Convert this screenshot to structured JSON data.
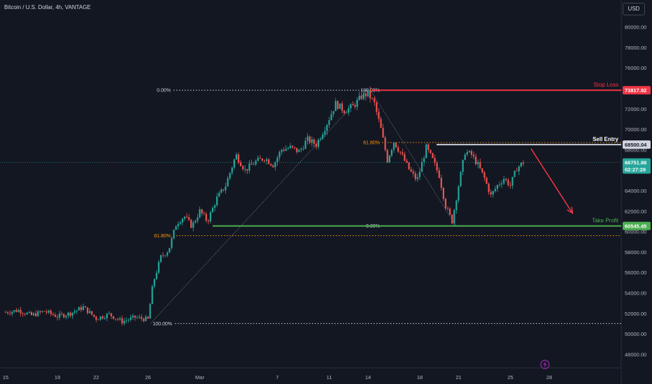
{
  "header": {
    "title": "Bitcoin / U.S. Dollar, 4h, VANTAGE",
    "currency_button": "USD"
  },
  "colors": {
    "background": "#131722",
    "up": "#26a69a",
    "down": "#ef5350",
    "stop": "#f23645",
    "take": "#4caf50",
    "fib": "#ff9800",
    "dotted": "#d1d4dc"
  },
  "icons": [
    "lightning-icon"
  ],
  "chart_data": {
    "type": "candlestick",
    "symbol": "Bitcoin / U.S. Dollar",
    "interval": "4h",
    "ylim": [
      47000,
      81000
    ],
    "y_ticks": [
      48000,
      50000,
      52000,
      54000,
      56000,
      58000,
      60000,
      62000,
      64000,
      66000,
      68000,
      70000,
      72000,
      74000,
      76000,
      78000,
      80000
    ],
    "x_labels": [
      {
        "label": "15",
        "day": 0
      },
      {
        "label": "19",
        "day": 4
      },
      {
        "label": "22",
        "day": 7
      },
      {
        "label": "26",
        "day": 11
      },
      {
        "label": "Mar",
        "day": 15
      },
      {
        "label": "7",
        "day": 21
      },
      {
        "label": "11",
        "day": 25
      },
      {
        "label": "14",
        "day": 28
      },
      {
        "label": "18",
        "day": 32
      },
      {
        "label": "21",
        "day": 35
      },
      {
        "label": "25",
        "day": 39
      },
      {
        "label": "28",
        "day": 42
      }
    ],
    "xlim": [
      0,
      45.5
    ],
    "price_path": [
      [
        0,
        52100
      ],
      [
        1,
        52300
      ],
      [
        2,
        51800
      ],
      [
        3,
        52200
      ],
      [
        4,
        51700
      ],
      [
        5,
        52000
      ],
      [
        6,
        52600
      ],
      [
        7,
        51500
      ],
      [
        8,
        51900
      ],
      [
        9,
        51200
      ],
      [
        10,
        51600
      ],
      [
        11,
        51400
      ],
      [
        11.4,
        55000
      ],
      [
        12,
        57500
      ],
      [
        12.6,
        58200
      ],
      [
        13.2,
        60800
      ],
      [
        13.8,
        61500
      ],
      [
        14.4,
        60500
      ],
      [
        15,
        62000
      ],
      [
        15.6,
        61000
      ],
      [
        16.3,
        63200
      ],
      [
        17,
        64500
      ],
      [
        17.8,
        67500
      ],
      [
        18.5,
        66000
      ],
      [
        19.3,
        66800
      ],
      [
        20,
        67200
      ],
      [
        20.7,
        66500
      ],
      [
        21.3,
        68000
      ],
      [
        22,
        68200
      ],
      [
        22.7,
        67800
      ],
      [
        23.3,
        69000
      ],
      [
        24,
        68500
      ],
      [
        24.8,
        70500
      ],
      [
        25.5,
        72500
      ],
      [
        26.2,
        71800
      ],
      [
        26.9,
        72300
      ],
      [
        27.5,
        73200
      ],
      [
        28,
        73500
      ],
      [
        28.5,
        72500
      ],
      [
        29,
        70000
      ],
      [
        29.5,
        67000
      ],
      [
        30,
        68800
      ],
      [
        30.6,
        67500
      ],
      [
        31.2,
        66000
      ],
      [
        31.8,
        65000
      ],
      [
        32.5,
        68200
      ],
      [
        33,
        67000
      ],
      [
        33.5,
        65500
      ],
      [
        34,
        62500
      ],
      [
        34.5,
        61000
      ],
      [
        35,
        64500
      ],
      [
        35.5,
        67800
      ],
      [
        36,
        67500
      ],
      [
        36.5,
        66500
      ],
      [
        37,
        65200
      ],
      [
        37.5,
        63500
      ],
      [
        38,
        64500
      ],
      [
        38.5,
        65200
      ],
      [
        39,
        64500
      ],
      [
        39.5,
        66200
      ],
      [
        40,
        66750
      ]
    ],
    "levels": {
      "stop_loss": {
        "label": "Stop Loss",
        "value": 73817.92,
        "tag": "73817.92"
      },
      "sell_entry": {
        "label": "Sell Entry",
        "value": 68500.04,
        "tag": "68500.04"
      },
      "current": {
        "value": 66751.88,
        "tag": "66751.88",
        "countdown": "02:27:29"
      },
      "take_profit": {
        "label": "Take Profit",
        "value": 60545.45,
        "tag": "60545.45"
      }
    },
    "fib_left": [
      {
        "label": "0.00%",
        "value": 73817.92
      },
      {
        "label": "61.80%",
        "value": 59600
      },
      {
        "label": "100.00%",
        "value": 51000
      }
    ],
    "fib_right": [
      {
        "label": "100.00%",
        "value": 73817.92
      },
      {
        "label": "61.80%",
        "value": 68700
      },
      {
        "label": "0.00%",
        "value": 60545.45
      }
    ],
    "trend_lines": [
      {
        "from": [
          11.2,
          51000
        ],
        "to": [
          27.9,
          73817.92
        ]
      },
      {
        "from": [
          28.2,
          73817.92
        ],
        "to": [
          34.8,
          60545.45
        ]
      }
    ],
    "projection_arrow": {
      "from": [
        40.6,
        68100
      ],
      "to": [
        43.8,
        61800
      ]
    }
  }
}
